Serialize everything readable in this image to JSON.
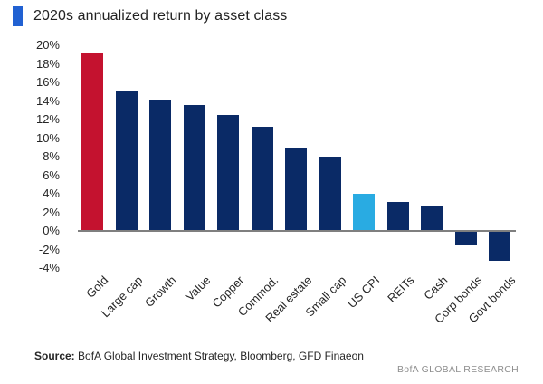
{
  "chart": {
    "title": "2020s annualized return by asset class",
    "title_marker_color": "#2161d2"
  },
  "chart_data": {
    "type": "bar",
    "title": "2020s annualized return by asset class",
    "categories": [
      "Gold",
      "Large cap",
      "Growth",
      "Value",
      "Copper",
      "Commod.",
      "Real estate",
      "Small cap",
      "US CPI",
      "REITs",
      "Cash",
      "Corp bonds",
      "Govt bonds"
    ],
    "values": [
      19.2,
      15.1,
      14.1,
      13.6,
      12.5,
      11.2,
      9.0,
      8.0,
      4.0,
      3.1,
      2.7,
      -1.6,
      -3.2
    ],
    "unit": "%",
    "bar_colors": [
      "#c4122f",
      "#0a2a66",
      "#0a2a66",
      "#0a2a66",
      "#0a2a66",
      "#0a2a66",
      "#0a2a66",
      "#0a2a66",
      "#29abe2",
      "#0a2a66",
      "#0a2a66",
      "#0a2a66",
      "#0a2a66"
    ],
    "colors": {
      "default_bar": "#0a2a66",
      "gold_highlight": "#c4122f",
      "us_cpi_highlight": "#29abe2",
      "axis_line": "#7f7f7f"
    },
    "xlabel": "",
    "ylabel": "",
    "ylim": [
      -4,
      20
    ],
    "ytick_step": 2,
    "ytick_labels": [
      "20%",
      "18%",
      "16%",
      "14%",
      "12%",
      "10%",
      "8%",
      "6%",
      "4%",
      "2%",
      "0%",
      "-2%",
      "-4%"
    ],
    "grid": false,
    "legend": "none"
  },
  "footer": {
    "source_label": "Source:",
    "source_text": " BofA Global Investment Strategy, Bloomberg, GFD Finaeon",
    "brand": "BofA GLOBAL RESEARCH"
  }
}
